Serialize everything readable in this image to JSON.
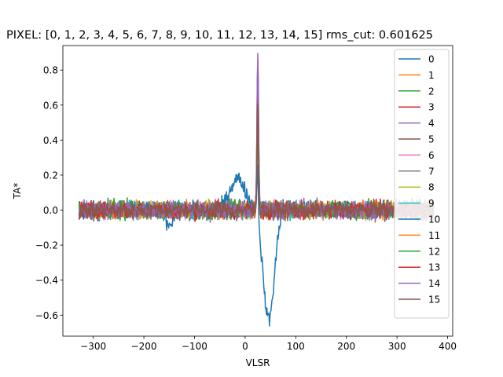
{
  "chart_data": {
    "type": "line",
    "title": "PIXEL: [0, 1, 2, 3, 4, 5, 6, 7, 8, 9, 10, 11, 12, 13, 14, 15]   rms_cut: 0.601625",
    "xlabel": "VLSR",
    "ylabel": "TA*",
    "xlim": [
      -360,
      410
    ],
    "ylim": [
      -0.72,
      0.94
    ],
    "xticks": [
      -300,
      -200,
      -100,
      0,
      100,
      200,
      300,
      400
    ],
    "yticks": [
      -0.6,
      -0.4,
      -0.2,
      0.0,
      0.2,
      0.4,
      0.6,
      0.8
    ],
    "xtick_labels": [
      "−300",
      "−200",
      "−100",
      "0",
      "100",
      "200",
      "300",
      "400"
    ],
    "ytick_labels": [
      "−0.6",
      "−0.4",
      "−0.2",
      "0.0",
      "0.2",
      "0.4",
      "0.6",
      "0.8"
    ],
    "grid": false,
    "legend_position": "upper-right",
    "series": [
      {
        "name": "0",
        "color": "#1f77b4",
        "peak": 0.45,
        "noise": 0.045
      },
      {
        "name": "1",
        "color": "#ff7f0e",
        "peak": 0.88,
        "noise": 0.04
      },
      {
        "name": "2",
        "color": "#2ca02c",
        "peak": 0.55,
        "noise": 0.045
      },
      {
        "name": "3",
        "color": "#d62728",
        "peak": 0.6,
        "noise": 0.045
      },
      {
        "name": "4",
        "color": "#9467bd",
        "peak": 0.87,
        "noise": 0.045
      },
      {
        "name": "5",
        "color": "#8c564b",
        "peak": 0.5,
        "noise": 0.045
      },
      {
        "name": "6",
        "color": "#e377c2",
        "peak": 0.55,
        "noise": 0.045
      },
      {
        "name": "7",
        "color": "#7f7f7f",
        "peak": 0.5,
        "noise": 0.045
      },
      {
        "name": "8",
        "color": "#bcbd22",
        "peak": 0.52,
        "noise": 0.045
      },
      {
        "name": "9",
        "color": "#17becf",
        "peak": 0.5,
        "noise": 0.045
      },
      {
        "name": "10",
        "color": "#1f77b4",
        "peak": 0.0,
        "noise": 0.04,
        "absorption": true
      },
      {
        "name": "11",
        "color": "#ff7f0e",
        "peak": 0.6,
        "noise": 0.045
      },
      {
        "name": "12",
        "color": "#2ca02c",
        "peak": 0.55,
        "noise": 0.045
      },
      {
        "name": "13",
        "color": "#d62728",
        "peak": 0.68,
        "noise": 0.045
      },
      {
        "name": "14",
        "color": "#9467bd",
        "peak": 0.86,
        "noise": 0.045
      },
      {
        "name": "15",
        "color": "#8c564b",
        "peak": 0.6,
        "noise": 0.045
      }
    ]
  }
}
